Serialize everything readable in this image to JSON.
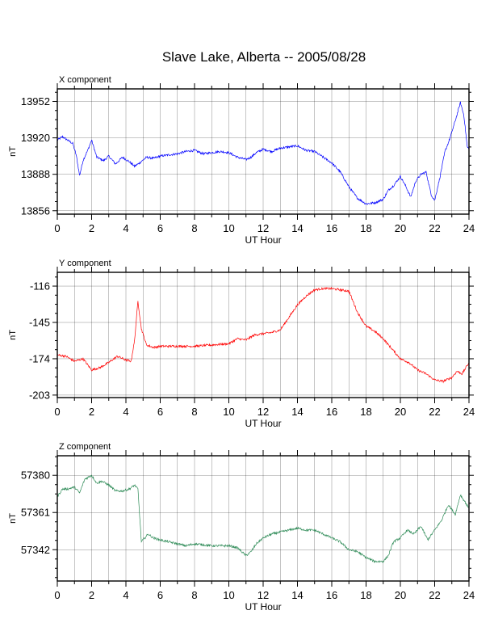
{
  "title": "Slave Lake, Alberta -- 2005/08/28",
  "chart_data": [
    {
      "type": "line",
      "subtitle": "X component",
      "xlabel": "UT Hour",
      "ylabel": "nT",
      "xlim": [
        0,
        24
      ],
      "ylim": [
        13853,
        13963
      ],
      "xticks": [
        0,
        2,
        4,
        6,
        8,
        10,
        12,
        14,
        16,
        18,
        20,
        22,
        24
      ],
      "yticks": [
        13856,
        13888,
        13920,
        13952
      ],
      "color": "#0000ff",
      "grid": true,
      "series": [
        {
          "x": [
            0,
            0.3,
            0.6,
            0.9,
            1.1,
            1.3,
            1.5,
            1.8,
            2.0,
            2.3,
            2.7,
            3.0,
            3.4,
            3.8,
            4.2,
            4.5,
            4.8,
            5.2,
            5.6,
            6.0,
            6.5,
            7.0,
            7.5,
            8.0,
            8.5,
            9.0,
            9.5,
            10.0,
            10.5,
            11.0,
            11.3,
            11.6,
            12.0,
            12.5,
            13.0,
            13.5,
            14.0,
            14.5,
            15.0,
            15.5,
            16.0,
            16.5,
            17.0,
            17.5,
            18.0,
            18.5,
            19.0,
            19.3,
            19.6,
            20.0,
            20.3,
            20.6,
            20.9,
            21.2,
            21.5,
            21.8,
            22.0,
            22.3,
            22.6,
            22.9,
            23.2,
            23.5,
            23.7,
            23.9,
            24.0
          ],
          "y": [
            13918,
            13921,
            13918,
            13915,
            13905,
            13887,
            13900,
            13910,
            13918,
            13903,
            13900,
            13904,
            13897,
            13903,
            13899,
            13895,
            13898,
            13903,
            13902,
            13904,
            13905,
            13906,
            13908,
            13909,
            13906,
            13907,
            13908,
            13907,
            13903,
            13901,
            13903,
            13907,
            13910,
            13908,
            13911,
            13912,
            13913,
            13909,
            13908,
            13903,
            13898,
            13890,
            13877,
            13867,
            13862,
            13863,
            13866,
            13874,
            13878,
            13886,
            13878,
            13868,
            13882,
            13888,
            13890,
            13870,
            13865,
            13885,
            13908,
            13920,
            13935,
            13951,
            13940,
            13912,
            13910
          ]
        }
      ]
    },
    {
      "type": "line",
      "subtitle": "Y component",
      "xlabel": "UT Hour",
      "ylabel": "nT",
      "xlim": [
        0,
        24
      ],
      "ylim": [
        -205,
        -105
      ],
      "xticks": [
        0,
        2,
        4,
        6,
        8,
        10,
        12,
        14,
        16,
        18,
        20,
        22,
        24
      ],
      "yticks": [
        -116,
        -145,
        -174,
        -203
      ],
      "color": "#ff0000",
      "grid": true,
      "series": [
        {
          "x": [
            0,
            0.5,
            1.0,
            1.5,
            2.0,
            2.5,
            3.0,
            3.5,
            4.0,
            4.3,
            4.5,
            4.7,
            4.9,
            5.2,
            5.6,
            6.0,
            7.0,
            8.0,
            9.0,
            10.0,
            10.5,
            11.0,
            11.5,
            12.0,
            12.5,
            13.0,
            13.5,
            14.0,
            14.5,
            15.0,
            15.5,
            16.0,
            16.5,
            17.0,
            17.5,
            18.0,
            18.5,
            19.0,
            19.5,
            20.0,
            20.5,
            21.0,
            21.5,
            22.0,
            22.5,
            23.0,
            23.3,
            23.6,
            24.0
          ],
          "y": [
            -171,
            -172,
            -176,
            -174,
            -183,
            -181,
            -177,
            -172,
            -175,
            -176,
            -160,
            -128,
            -150,
            -163,
            -165,
            -164,
            -164,
            -164,
            -163,
            -162,
            -158,
            -159,
            -155,
            -154,
            -153,
            -151,
            -141,
            -131,
            -124,
            -119,
            -118,
            -118,
            -119,
            -120,
            -137,
            -148,
            -152,
            -158,
            -166,
            -174,
            -177,
            -183,
            -186,
            -191,
            -192,
            -189,
            -184,
            -186,
            -177
          ]
        }
      ]
    },
    {
      "type": "line",
      "subtitle": "Z component",
      "xlabel": "UT Hour",
      "ylabel": "nT",
      "xlim": [
        0,
        24
      ],
      "ylim": [
        57326,
        57390
      ],
      "xticks": [
        0,
        2,
        4,
        6,
        8,
        10,
        12,
        14,
        16,
        18,
        20,
        22,
        24
      ],
      "yticks": [
        57342,
        57361,
        57380
      ],
      "color": "#2e8b57",
      "grid": true,
      "series": [
        {
          "x": [
            0,
            0.3,
            0.6,
            1.0,
            1.3,
            1.6,
            2.0,
            2.3,
            2.6,
            3.0,
            3.4,
            3.8,
            4.2,
            4.5,
            4.7,
            4.9,
            5.1,
            5.3,
            5.6,
            6.0,
            6.5,
            7.0,
            7.5,
            8.0,
            9.0,
            10.0,
            10.5,
            11.0,
            11.3,
            11.6,
            12.0,
            12.5,
            13.0,
            13.5,
            14.0,
            14.5,
            15.0,
            15.5,
            16.0,
            16.5,
            17.0,
            17.5,
            18.0,
            18.5,
            19.0,
            19.3,
            19.6,
            20.0,
            20.4,
            20.8,
            21.2,
            21.6,
            22.0,
            22.4,
            22.8,
            23.2,
            23.5,
            23.8,
            24.0
          ],
          "y": [
            57369,
            57373,
            57373,
            57374,
            57371,
            57378,
            57380,
            57376,
            57377,
            57375,
            57372,
            57372,
            57373,
            57375,
            57373,
            57346,
            57348,
            57350,
            57348,
            57347,
            57346,
            57345,
            57344,
            57345,
            57344,
            57344,
            57343,
            57339,
            57341,
            57345,
            57348,
            57350,
            57351,
            57352,
            57353,
            57352,
            57352,
            57350,
            57348,
            57346,
            57342,
            57341,
            57338,
            57336,
            57336,
            57339,
            57346,
            57348,
            57352,
            57350,
            57354,
            57347,
            57352,
            57357,
            57365,
            57360,
            57370,
            57366,
            57363
          ]
        }
      ]
    }
  ]
}
